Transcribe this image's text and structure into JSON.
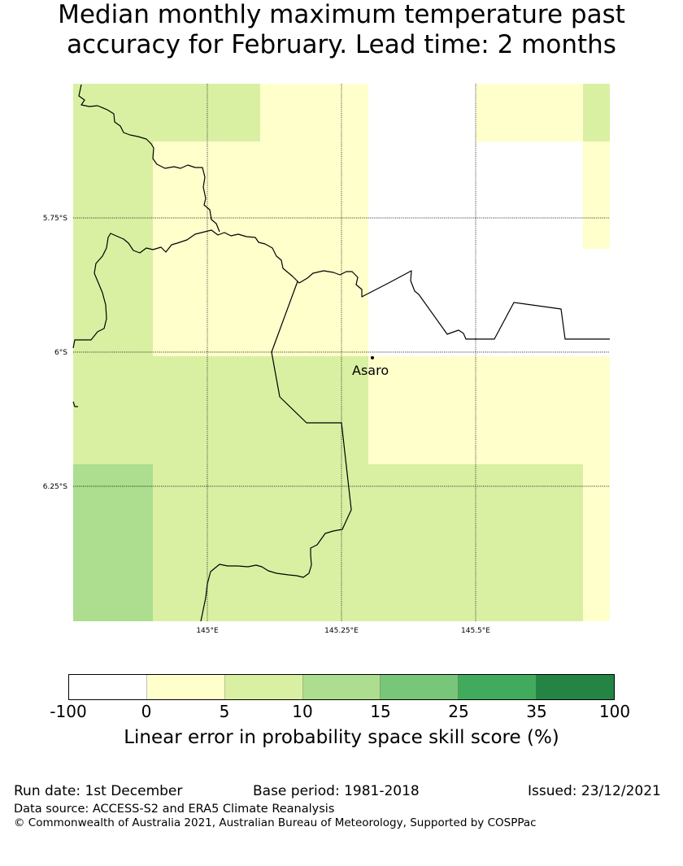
{
  "title": {
    "line1": "Median monthly maximum temperature past",
    "line2": "accuracy for February. Lead time: 2 months"
  },
  "map": {
    "lat_ticks": [
      "5.75°S",
      "6°S",
      "6.25°S"
    ],
    "lon_ticks": [
      "145°E",
      "145.25°E",
      "145.5°E"
    ],
    "place": {
      "name": "Asaro"
    },
    "colors": {
      "below_0": "#ffffff",
      "0_5": "#ffffcc",
      "5_10": "#d9f0a3",
      "10_15": "#addd8e",
      "border": "#000000",
      "grid": "#000000"
    }
  },
  "legend": {
    "ticks": [
      "-100",
      "0",
      "5",
      "10",
      "15",
      "25",
      "35",
      "100"
    ],
    "colors": [
      "#ffffff",
      "#ffffcc",
      "#d9f0a3",
      "#addd8e",
      "#78c679",
      "#41ab5d",
      "#238443"
    ],
    "label": "Linear error in probability space skill score (%)"
  },
  "footer": {
    "run_date": "Run date: 1st December",
    "base_period": "Base period: 1981-2018",
    "issued": "Issued: 23/12/2021",
    "data_source": "Data source: ACCESS-S2 and ERA5 Climate Reanalysis",
    "copyright": "© Commonwealth of Australia 2021, Australian Bureau of Meteorology, Supported by COSPPac"
  }
}
